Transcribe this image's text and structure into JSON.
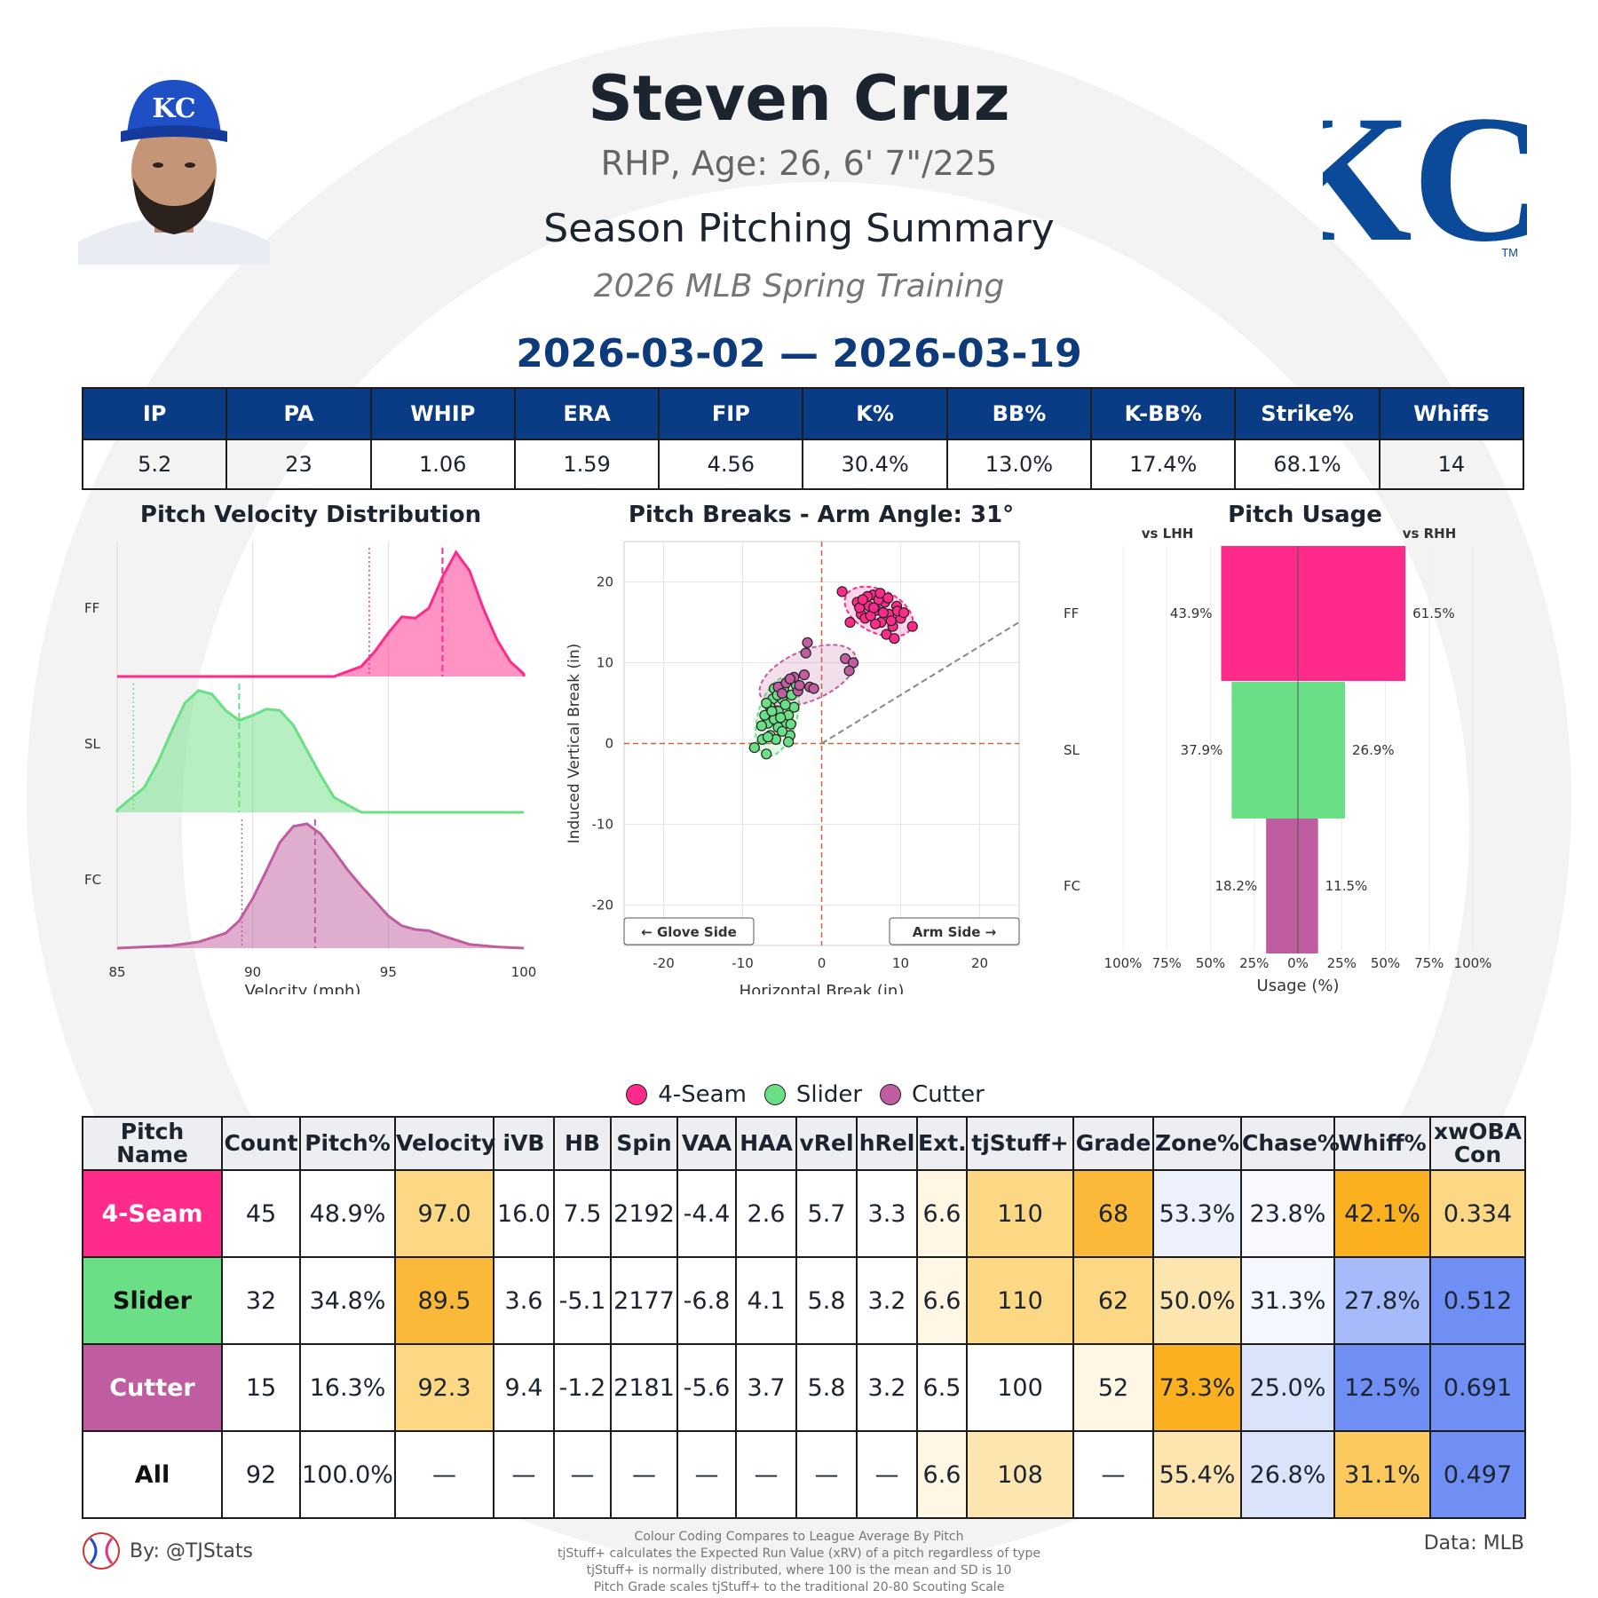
{
  "header": {
    "name": "Steven Cruz",
    "bio": "RHP, Age: 26, 6' 7\"/225",
    "summary_title": "Season Pitching Summary",
    "season": "2026 MLB Spring Training",
    "date_range": "2026-03-02 — 2026-03-19",
    "logo_text": "KC",
    "cap_text": "KC",
    "trademark": "TM"
  },
  "stats": {
    "headers": [
      "IP",
      "PA",
      "WHIP",
      "ERA",
      "FIP",
      "K%",
      "BB%",
      "K-BB%",
      "Strike%",
      "Whiffs"
    ],
    "values": [
      "5.2",
      "23",
      "1.06",
      "1.59",
      "4.56",
      "30.4%",
      "13.0%",
      "17.4%",
      "68.1%",
      "14"
    ]
  },
  "colors": {
    "FF": "#ff2a8a",
    "SL": "#6bdf86",
    "FC": "#c05da0",
    "header_blue": "#0a3c86"
  },
  "chart_data": [
    {
      "type": "area",
      "title": "Pitch Velocity Distribution",
      "xlabel": "Velocity (mph)",
      "xlim": [
        85,
        100
      ],
      "xticks": [
        "85",
        "90",
        "95",
        "100"
      ],
      "series": [
        {
          "name": "FF",
          "mean": 97.0,
          "league_mean": 94.3,
          "x": [
            93.0,
            94.0,
            94.5,
            95.0,
            95.5,
            96.0,
            96.5,
            97.0,
            97.5,
            98.0,
            98.5,
            99.0,
            99.5,
            100.0
          ],
          "y": [
            0.0,
            0.08,
            0.2,
            0.35,
            0.48,
            0.47,
            0.55,
            0.8,
            1.0,
            0.85,
            0.55,
            0.3,
            0.12,
            0.02
          ]
        },
        {
          "name": "SL",
          "mean": 89.5,
          "league_mean": 85.6,
          "x": [
            85.0,
            86.0,
            86.5,
            87.0,
            87.5,
            88.0,
            88.5,
            89.0,
            89.5,
            90.0,
            90.5,
            91.0,
            91.5,
            92.0,
            92.5,
            93.0,
            94.0
          ],
          "y": [
            0.02,
            0.2,
            0.4,
            0.65,
            0.88,
            0.98,
            0.95,
            0.82,
            0.74,
            0.78,
            0.83,
            0.82,
            0.7,
            0.5,
            0.3,
            0.12,
            0.0
          ]
        },
        {
          "name": "FC",
          "mean": 92.3,
          "league_mean": 89.6,
          "x": [
            85.0,
            87.0,
            88.0,
            89.0,
            89.5,
            90.0,
            90.5,
            91.0,
            91.5,
            92.0,
            92.5,
            93.0,
            93.5,
            94.0,
            94.5,
            95.0,
            95.5,
            96.0,
            96.5,
            97.0,
            98.0,
            99.0,
            100.0
          ],
          "y": [
            0.0,
            0.02,
            0.05,
            0.12,
            0.22,
            0.4,
            0.62,
            0.85,
            0.98,
            1.0,
            0.92,
            0.78,
            0.63,
            0.5,
            0.38,
            0.26,
            0.18,
            0.15,
            0.14,
            0.1,
            0.03,
            0.01,
            0.0
          ]
        }
      ]
    },
    {
      "type": "scatter",
      "title": "Pitch Breaks - Arm Angle: 31°",
      "xlabel": "Horizontal Break (in)",
      "ylabel": "Induced Vertical Break (in)",
      "xlim": [
        -25,
        25
      ],
      "ylim": [
        -25,
        25
      ],
      "xticks": [
        "-20",
        "-10",
        "0",
        "10",
        "20"
      ],
      "yticks": [
        "20",
        "10",
        "0",
        "-10",
        "-20"
      ],
      "arm_angle_deg": 31,
      "annotations": [
        "← Glove Side",
        "Arm Side →"
      ],
      "series": [
        {
          "name": "FF",
          "points": [
            [
              2.6,
              18.8
            ],
            [
              4.5,
              17.5
            ],
            [
              5.0,
              16.0
            ],
            [
              5.5,
              15.5
            ],
            [
              6.0,
              17.0
            ],
            [
              6.5,
              18.4
            ],
            [
              7.0,
              16.5
            ],
            [
              7.5,
              15.0
            ],
            [
              8.0,
              17.5
            ],
            [
              8.5,
              16.0
            ],
            [
              9.0,
              14.5
            ],
            [
              9.5,
              17.0
            ],
            [
              10.0,
              15.5
            ],
            [
              6.8,
              14.8
            ],
            [
              7.2,
              17.8
            ],
            [
              8.2,
              13.5
            ],
            [
              9.2,
              13.0
            ],
            [
              11.5,
              14.5
            ],
            [
              5.8,
              18.2
            ],
            [
              4.8,
              16.8
            ],
            [
              7.8,
              16.2
            ],
            [
              8.8,
              15.2
            ],
            [
              6.2,
              15.8
            ],
            [
              7.4,
              18.6
            ],
            [
              9.6,
              16.4
            ],
            [
              10.4,
              16.2
            ],
            [
              3.6,
              15.0
            ],
            [
              5.2,
              17.8
            ],
            [
              6.6,
              16.8
            ],
            [
              8.4,
              18.0
            ]
          ]
        },
        {
          "name": "SL",
          "points": [
            [
              -8.5,
              -0.5
            ],
            [
              -7.0,
              -1.3
            ],
            [
              -7.5,
              0.5
            ],
            [
              -6.5,
              1.0
            ],
            [
              -6.8,
              2.5
            ],
            [
              -6.0,
              3.0
            ],
            [
              -5.5,
              4.0
            ],
            [
              -7.2,
              3.5
            ],
            [
              -6.2,
              5.5
            ],
            [
              -5.0,
              5.5
            ],
            [
              -4.5,
              2.5
            ],
            [
              -4.0,
              1.0
            ],
            [
              -5.8,
              0.5
            ],
            [
              -6.5,
              4.5
            ],
            [
              -5.2,
              7.0
            ],
            [
              -4.8,
              6.8
            ],
            [
              -6.0,
              6.8
            ],
            [
              -3.5,
              4.5
            ],
            [
              -3.8,
              6.0
            ],
            [
              -5.5,
              2.0
            ],
            [
              -4.2,
              3.5
            ],
            [
              -7.0,
              5.0
            ],
            [
              -5.0,
              1.5
            ],
            [
              -6.3,
              4.0
            ],
            [
              -4.6,
              4.8
            ],
            [
              -3.2,
              7.2
            ],
            [
              -7.6,
              2.2
            ],
            [
              -5.6,
              6.0
            ],
            [
              -4.2,
              0.2
            ],
            [
              -6.8,
              0.8
            ],
            [
              -5.2,
              3.2
            ],
            [
              -3.9,
              2.4
            ]
          ]
        },
        {
          "name": "FC",
          "points": [
            [
              -5.5,
              7.0
            ],
            [
              -4.5,
              7.5
            ],
            [
              -3.5,
              8.2
            ],
            [
              -3.0,
              6.5
            ],
            [
              -2.2,
              8.5
            ],
            [
              -1.5,
              7.0
            ],
            [
              -5.0,
              6.2
            ],
            [
              -2.0,
              11.2
            ],
            [
              -1.8,
              12.5
            ],
            [
              3.0,
              10.5
            ],
            [
              4.0,
              10.0
            ],
            [
              3.5,
              9.0
            ],
            [
              -1.0,
              6.8
            ],
            [
              -4.0,
              8.0
            ],
            [
              -2.8,
              7.2
            ]
          ]
        }
      ]
    },
    {
      "type": "bar",
      "title": "Pitch Usage",
      "xlabel": "Usage (%)",
      "left_label": "vs LHH",
      "right_label": "vs RHH",
      "xticks": [
        "100%",
        "75%",
        "50%",
        "25%",
        "0%",
        "25%",
        "50%",
        "75%",
        "100%"
      ],
      "categories": [
        "FF",
        "SL",
        "FC"
      ],
      "series": [
        {
          "name": "vs LHH",
          "values": [
            43.9,
            37.9,
            18.2
          ],
          "labels": [
            "43.9%",
            "37.9%",
            "18.2%"
          ]
        },
        {
          "name": "vs RHH",
          "values": [
            61.5,
            26.9,
            11.5
          ],
          "labels": [
            "61.5%",
            "26.9%",
            "11.5%"
          ]
        }
      ]
    }
  ],
  "legend": [
    "4-Seam",
    "Slider",
    "Cutter"
  ],
  "pitch_table": {
    "headers": [
      "Pitch Name",
      "Count",
      "Pitch%",
      "Velocity",
      "iVB",
      "HB",
      "Spin",
      "VAA",
      "HAA",
      "vRel",
      "hRel",
      "Ext.",
      "tjStuff+",
      "Grade",
      "Zone%",
      "Chase%",
      "Whiff%",
      "xwOBA Con"
    ],
    "rows": [
      {
        "cells": [
          "4-Seam",
          "45",
          "48.9%",
          "97.0",
          "16.0",
          "7.5",
          "2192",
          "-4.4",
          "2.6",
          "5.7",
          "3.3",
          "6.6",
          "110",
          "68",
          "53.3%",
          "23.8%",
          "42.1%",
          "0.334"
        ],
        "bg": [
          "#ff2a8a",
          "#ffffff",
          "#ffffff",
          "#fcd885",
          "#ffffff",
          "#ffffff",
          "#ffffff",
          "#ffffff",
          "#ffffff",
          "#ffffff",
          "#ffffff",
          "#fff6e3",
          "#fcd885",
          "#fbb93a",
          "#edf1fc",
          "#f7f9fe",
          "#fbb020",
          "#fcd885"
        ],
        "fg": "#ffffff"
      },
      {
        "cells": [
          "Slider",
          "32",
          "34.8%",
          "89.5",
          "3.6",
          "-5.1",
          "2177",
          "-6.8",
          "4.1",
          "5.8",
          "3.2",
          "6.6",
          "110",
          "62",
          "50.0%",
          "31.3%",
          "27.8%",
          "0.512"
        ],
        "bg": [
          "#6bdf86",
          "#ffffff",
          "#ffffff",
          "#fbb93a",
          "#ffffff",
          "#ffffff",
          "#ffffff",
          "#ffffff",
          "#ffffff",
          "#ffffff",
          "#ffffff",
          "#fff6e3",
          "#fcd885",
          "#fcd885",
          "#fde5b0",
          "#f5f7fe",
          "#a7bbfa",
          "#6f8ff4"
        ],
        "fg": "#111111"
      },
      {
        "cells": [
          "Cutter",
          "15",
          "16.3%",
          "92.3",
          "9.4",
          "-1.2",
          "2181",
          "-5.6",
          "3.7",
          "5.8",
          "3.2",
          "6.5",
          "100",
          "52",
          "73.3%",
          "25.0%",
          "12.5%",
          "0.691"
        ],
        "bg": [
          "#c05da0",
          "#ffffff",
          "#ffffff",
          "#fcd885",
          "#ffffff",
          "#ffffff",
          "#ffffff",
          "#ffffff",
          "#ffffff",
          "#ffffff",
          "#ffffff",
          "#ffffff",
          "#ffffff",
          "#fff6e3",
          "#fbb020",
          "#dbe3fb",
          "#6f8ff4",
          "#6f8ff4"
        ],
        "fg": "#ffffff"
      },
      {
        "cells": [
          "All",
          "92",
          "100.0%",
          "—",
          "—",
          "—",
          "—",
          "—",
          "—",
          "—",
          "—",
          "6.6",
          "108",
          "—",
          "55.4%",
          "26.8%",
          "31.1%",
          "0.497"
        ],
        "bg": [
          "#ffffff",
          "#ffffff",
          "#ffffff",
          "#ffffff",
          "#ffffff",
          "#ffffff",
          "#ffffff",
          "#ffffff",
          "#ffffff",
          "#ffffff",
          "#ffffff",
          "#fff6e3",
          "#fde5b0",
          "#ffffff",
          "#fde5b0",
          "#dbe3fb",
          "#fcc95e",
          "#6f8ff4"
        ],
        "fg": "#111111"
      }
    ]
  },
  "footer": {
    "by": "By: @TJStats",
    "data": "Data: MLB",
    "notes": [
      "Colour Coding Compares to League Average By Pitch",
      "tjStuff+ calculates the Expected Run Value (xRV) of a pitch regardless of type",
      "tjStuff+ is normally distributed, where 100 is the mean and SD is 10",
      "Pitch Grade scales tjStuff+ to the traditional 20-80 Scouting Scale"
    ]
  }
}
